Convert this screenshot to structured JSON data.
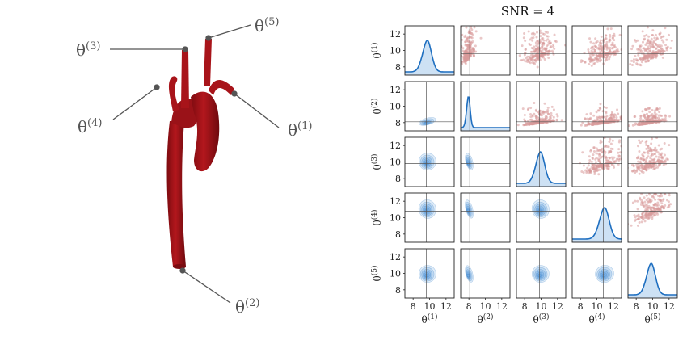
{
  "annotation_labels": [
    {
      "id": "theta1",
      "base": "θ",
      "sup": "(1)"
    },
    {
      "id": "theta2",
      "base": "θ",
      "sup": "(2)"
    },
    {
      "id": "theta3",
      "base": "θ",
      "sup": "(3)"
    },
    {
      "id": "theta4",
      "base": "θ",
      "sup": "(4)"
    },
    {
      "id": "theta5",
      "base": "θ",
      "sup": "(5)"
    }
  ],
  "chart_data": {
    "type": "pairplot",
    "title": "SNR = 4",
    "parameters": [
      {
        "base": "θ",
        "sup": "(1)"
      },
      {
        "base": "θ",
        "sup": "(2)"
      },
      {
        "base": "θ",
        "sup": "(3)"
      },
      {
        "base": "θ",
        "sup": "(4)"
      },
      {
        "base": "θ",
        "sup": "(5)"
      }
    ],
    "x_ticks": [
      8,
      10,
      12
    ],
    "y_ticks": [
      8,
      10,
      12
    ],
    "axis_range": [
      7,
      13
    ],
    "true_values": [
      9.6,
      8.1,
      9.8,
      10.8,
      9.8
    ],
    "marginals": [
      {
        "mean": 9.6,
        "std": 0.55
      },
      {
        "mean": 7.9,
        "std": 0.22
      },
      {
        "mean": 9.8,
        "std": 0.55
      },
      {
        "mean": 10.8,
        "std": 0.6
      },
      {
        "mean": 9.7,
        "std": 0.55
      }
    ],
    "lower_style": "filled density contours",
    "upper_style": "scatter samples",
    "colors": {
      "density": "#1f6fc0",
      "density_fill": "#6fa8e0",
      "scatter": "#d99a9a",
      "truth_line": "#555555",
      "aorta": "#a8141a"
    }
  }
}
